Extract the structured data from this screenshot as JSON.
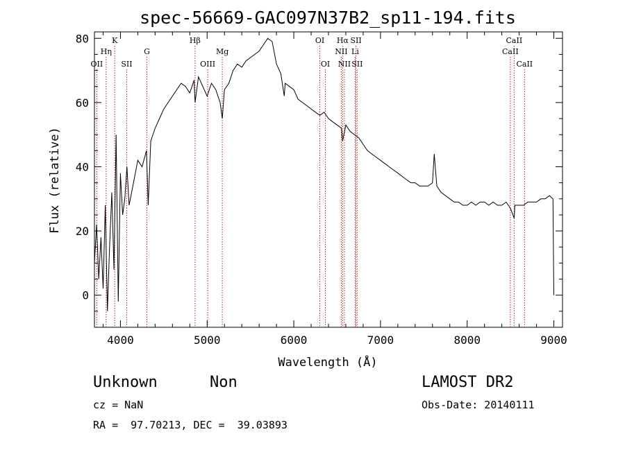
{
  "chart_data": {
    "type": "line",
    "title": "spec-56669-GAC097N37B2_sp11-194.fits",
    "xlabel": "Wavelength (Å)",
    "ylabel": "Flux (relative)",
    "xlim": [
      3700,
      9100
    ],
    "ylim": [
      -10,
      82
    ],
    "xticks": [
      4000,
      5000,
      6000,
      7000,
      8000,
      9000
    ],
    "yticks": [
      0,
      20,
      40,
      60,
      80
    ],
    "series": [
      {
        "x": [
          3700,
          3725,
          3750,
          3775,
          3800,
          3825,
          3850,
          3875,
          3900,
          3925,
          3950,
          3975,
          4000,
          4025,
          4050,
          4075,
          4100,
          4150,
          4200,
          4250,
          4300,
          4320,
          4350,
          4400,
          4450,
          4500,
          4550,
          4600,
          4650,
          4700,
          4750,
          4800,
          4850,
          4861,
          4900,
          4950,
          5000,
          5050,
          5100,
          5150,
          5175,
          5200,
          5250,
          5300,
          5350,
          5400,
          5450,
          5500,
          5550,
          5600,
          5650,
          5700,
          5750,
          5800,
          5850,
          5890,
          5900,
          5950,
          6000,
          6050,
          6100,
          6150,
          6200,
          6250,
          6300,
          6350,
          6400,
          6450,
          6500,
          6550,
          6563,
          6600,
          6650,
          6700,
          6750,
          6800,
          6850,
          6900,
          6950,
          7000,
          7050,
          7100,
          7150,
          7200,
          7250,
          7300,
          7350,
          7400,
          7450,
          7500,
          7550,
          7600,
          7620,
          7650,
          7700,
          7750,
          7800,
          7850,
          7900,
          7950,
          8000,
          8050,
          8100,
          8150,
          8200,
          8250,
          8300,
          8350,
          8400,
          8450,
          8500,
          8542,
          8550,
          8600,
          8650,
          8700,
          8750,
          8800,
          8850,
          8900,
          8950,
          8990,
          9000
        ],
        "y": [
          10,
          22,
          5,
          18,
          2,
          28,
          -5,
          15,
          32,
          8,
          50,
          -2,
          38,
          25,
          30,
          40,
          28,
          35,
          42,
          40,
          45,
          28,
          48,
          52,
          55,
          58,
          60,
          62,
          64,
          66,
          65,
          63,
          67,
          60,
          68,
          65,
          62,
          66,
          64,
          60,
          55,
          64,
          66,
          70,
          72,
          71,
          73,
          74,
          75,
          76,
          78,
          80,
          79,
          72,
          69,
          62,
          66,
          65,
          64,
          61,
          60,
          59,
          58,
          57,
          56,
          57,
          55,
          54,
          53,
          52,
          48,
          53,
          51,
          50,
          49,
          47,
          45,
          44,
          43,
          42,
          41,
          40,
          39,
          38,
          37,
          36,
          35,
          35,
          34,
          34,
          34,
          35,
          44,
          34,
          32,
          31,
          30,
          29,
          29,
          28,
          28,
          29,
          28,
          29,
          29,
          28,
          29,
          28,
          28,
          29,
          27,
          24,
          28,
          28,
          28,
          29,
          29,
          29,
          30,
          30,
          31,
          30,
          0
        ]
      }
    ],
    "lines": [
      {
        "name": "OII",
        "x": 3727,
        "row": 3
      },
      {
        "name": "Hη",
        "x": 3835,
        "row": 2
      },
      {
        "name": "K",
        "x": 3934,
        "row": 1
      },
      {
        "name": "SII",
        "x": 4072,
        "row": 3
      },
      {
        "name": "G",
        "x": 4305,
        "row": 2
      },
      {
        "name": "Hβ",
        "x": 4861,
        "row": 1
      },
      {
        "name": "OIII",
        "x": 5007,
        "row": 3
      },
      {
        "name": "Mg",
        "x": 5175,
        "row": 2
      },
      {
        "name": "OI",
        "x": 6300,
        "row": 1
      },
      {
        "name": "OI",
        "x": 6364,
        "row": 3
      },
      {
        "name": "Hα",
        "x": 6563,
        "row": 1
      },
      {
        "name": "NII",
        "x": 6548,
        "row": 2
      },
      {
        "name": "NII",
        "x": 6584,
        "row": 3
      },
      {
        "name": "SII",
        "x": 6717,
        "row": 1
      },
      {
        "name": "Li",
        "x": 6708,
        "row": 2
      },
      {
        "name": "SII",
        "x": 6731,
        "row": 3
      },
      {
        "name": "CaII",
        "x": 8498,
        "row": 2
      },
      {
        "name": "CaII",
        "x": 8542,
        "row": 1
      },
      {
        "name": "CaII",
        "x": 8662,
        "row": 3
      }
    ],
    "grid": false,
    "line_color": "#000000",
    "marker_color": "#b22222"
  },
  "info": {
    "class": "Unknown",
    "subclass": "Non",
    "survey": "LAMOST DR2",
    "cz": "cz = NaN",
    "obs_date": "Obs-Date: 20140111",
    "coords": "RA =  97.70213, DEC =  39.03893"
  }
}
